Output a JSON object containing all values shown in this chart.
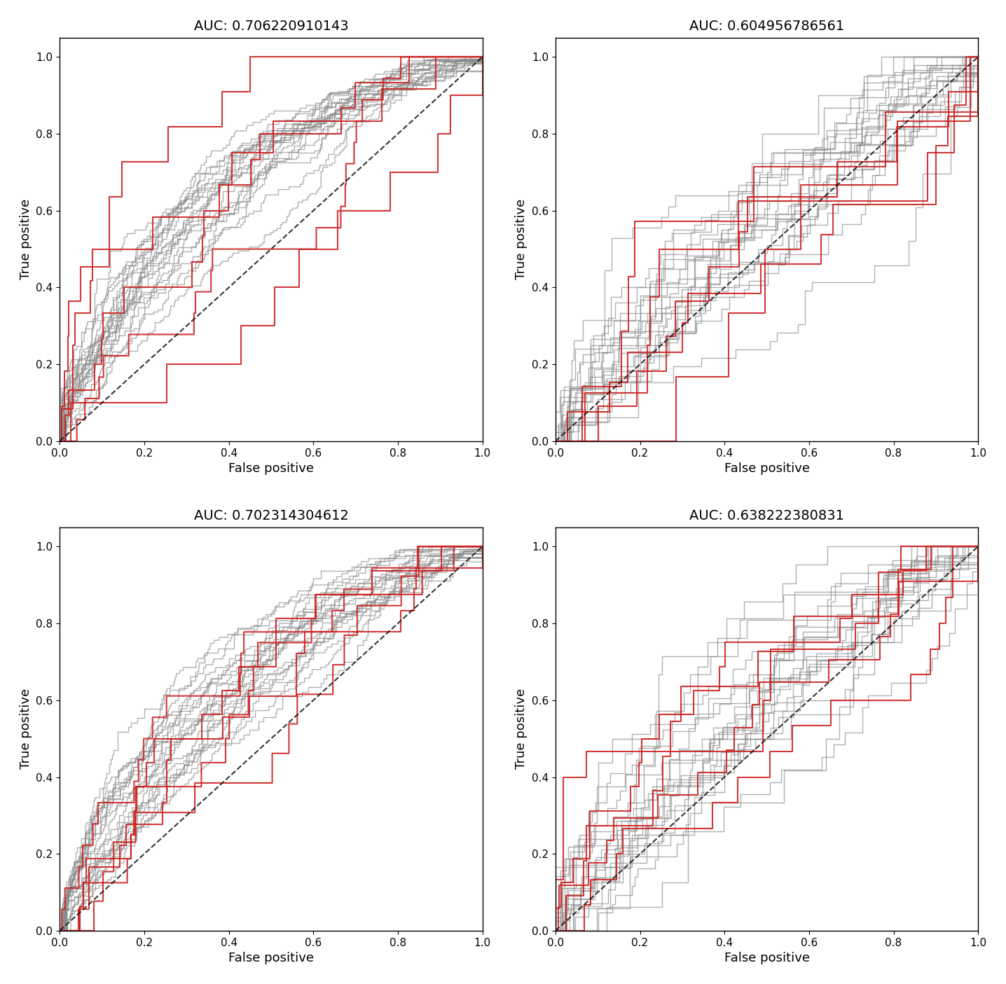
{
  "titles": [
    "AUC: 0.706220910143",
    "AUC: 0.604956786561",
    "AUC: 0.702314304612",
    "AUC: 0.638222380831"
  ],
  "xlabels": [
    "False positive",
    "False positive",
    "False positive",
    "False positive"
  ],
  "ylabels": [
    "True positive",
    "True positive",
    "True positive",
    "True positive"
  ],
  "n_gray_curves": 22,
  "n_red_curves": 5,
  "gray_color": "#888888",
  "red_color": "#cc2222",
  "diag_color": "#111111",
  "background_color": "#ffffff",
  "title_fontsize": 14,
  "label_fontsize": 13,
  "tick_fontsize": 11,
  "linewidth_gray": 1.0,
  "linewidth_red": 1.5,
  "seed": 12345
}
